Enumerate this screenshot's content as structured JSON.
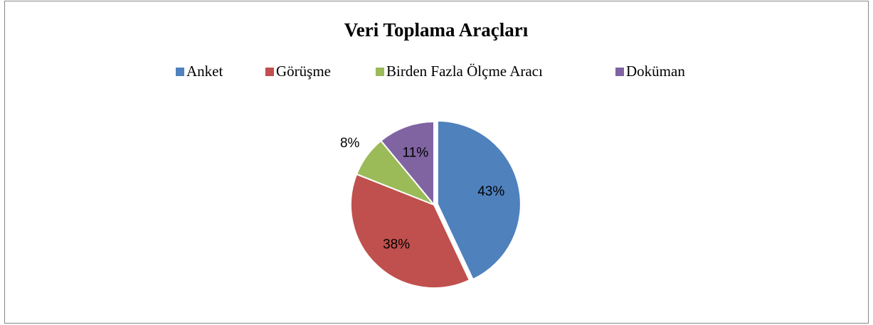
{
  "chart_data": {
    "type": "pie",
    "title": "Veri Toplama Araçları",
    "categories": [
      "Anket",
      "Görüşme",
      "Birden Fazla Ölçme Aracı",
      "Doküman"
    ],
    "values": [
      43,
      38,
      8,
      11
    ],
    "value_labels": [
      "43%",
      "38%",
      "8%",
      "11%"
    ],
    "colors": [
      "#4f81bd",
      "#c0504d",
      "#9bbb59",
      "#8064a2"
    ],
    "legend": "top"
  }
}
